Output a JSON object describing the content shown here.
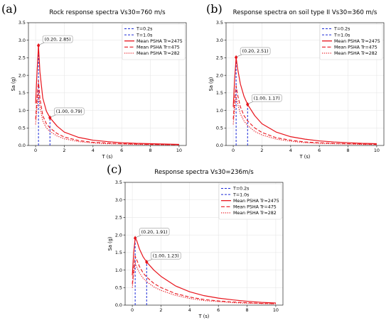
{
  "chart_data": [
    {
      "type": "line",
      "panel_label": "(a)",
      "title": "Rock response spectra Vs30=760 m/s",
      "xlabel": "T (s)",
      "ylabel": "Sa (g)",
      "xlim": [
        -0.5,
        10.5
      ],
      "ylim": [
        0,
        3.5
      ],
      "xticks": [
        "0",
        "2",
        "4",
        "6",
        "8",
        "10"
      ],
      "yticks": [
        "0.0",
        "0.5",
        "1.0",
        "1.5",
        "2.0",
        "2.5",
        "3.0",
        "3.5"
      ],
      "grid": true,
      "legend_position": "top-right",
      "reference_lines": [
        {
          "name": "T=0.2s",
          "x": 0.2
        },
        {
          "name": "T=1.0s",
          "x": 1.0
        }
      ],
      "series": [
        {
          "name": "Mean PSHA Tr=2475",
          "style": "solid",
          "x": [
            0,
            0.1,
            0.2,
            0.3,
            0.5,
            0.75,
            1.0,
            1.5,
            2.0,
            3.0,
            4.0,
            5.0,
            6.0,
            7.0,
            8.0,
            9.0,
            10.0
          ],
          "y": [
            1.2,
            2.1,
            2.85,
            2.1,
            1.35,
            0.98,
            0.79,
            0.55,
            0.38,
            0.23,
            0.15,
            0.11,
            0.08,
            0.06,
            0.05,
            0.04,
            0.03
          ]
        },
        {
          "name": "Mean PSHA Tr=475",
          "style": "dashed",
          "x": [
            0,
            0.1,
            0.2,
            0.3,
            0.5,
            0.75,
            1.0,
            1.5,
            2.0,
            3.0,
            4.0,
            5.0,
            6.0,
            7.0,
            8.0,
            9.0,
            10.0
          ],
          "y": [
            0.75,
            1.35,
            1.85,
            1.35,
            0.85,
            0.62,
            0.5,
            0.34,
            0.24,
            0.14,
            0.09,
            0.07,
            0.05,
            0.04,
            0.03,
            0.025,
            0.02
          ]
        },
        {
          "name": "Mean PSHA Tr=282",
          "style": "dotted",
          "x": [
            0,
            0.1,
            0.2,
            0.3,
            0.5,
            0.75,
            1.0,
            1.5,
            2.0,
            3.0,
            4.0,
            5.0,
            6.0,
            7.0,
            8.0,
            9.0,
            10.0
          ],
          "y": [
            0.6,
            1.1,
            1.55,
            1.1,
            0.7,
            0.5,
            0.4,
            0.27,
            0.19,
            0.11,
            0.07,
            0.05,
            0.04,
            0.03,
            0.025,
            0.02,
            0.015
          ]
        }
      ],
      "annotations": [
        {
          "text": "(0.20, 2.85)",
          "x": 0.2,
          "y": 2.85
        },
        {
          "text": "(1.00, 0.79)",
          "x": 1.0,
          "y": 0.79
        }
      ]
    },
    {
      "type": "line",
      "panel_label": "(b)",
      "title": "Response spectra on soil type II Vs30=360 m/s",
      "xlabel": "T (s)",
      "ylabel": "Sa (g)",
      "xlim": [
        -0.5,
        10.5
      ],
      "ylim": [
        0,
        3.5
      ],
      "xticks": [
        "0",
        "2",
        "4",
        "6",
        "8",
        "10"
      ],
      "yticks": [
        "0.0",
        "0.5",
        "1.0",
        "1.5",
        "2.0",
        "2.5",
        "3.0",
        "3.5"
      ],
      "grid": true,
      "legend_position": "top-right",
      "reference_lines": [
        {
          "name": "T=0.2s",
          "x": 0.2
        },
        {
          "name": "T=1.0s",
          "x": 1.0
        }
      ],
      "series": [
        {
          "name": "Mean PSHA Tr=2475",
          "style": "solid",
          "x": [
            0,
            0.1,
            0.2,
            0.3,
            0.5,
            0.75,
            1.0,
            1.5,
            2.0,
            3.0,
            4.0,
            5.0,
            6.0,
            7.0,
            8.0,
            9.0,
            10.0
          ],
          "y": [
            1.1,
            1.9,
            2.51,
            2.2,
            1.75,
            1.4,
            1.17,
            0.85,
            0.62,
            0.38,
            0.25,
            0.18,
            0.13,
            0.1,
            0.08,
            0.06,
            0.05
          ]
        },
        {
          "name": "Mean PSHA Tr=475",
          "style": "dashed",
          "x": [
            0,
            0.1,
            0.2,
            0.3,
            0.5,
            0.75,
            1.0,
            1.5,
            2.0,
            3.0,
            4.0,
            5.0,
            6.0,
            7.0,
            8.0,
            9.0,
            10.0
          ],
          "y": [
            0.75,
            1.3,
            1.7,
            1.45,
            1.1,
            0.85,
            0.7,
            0.5,
            0.37,
            0.22,
            0.15,
            0.1,
            0.08,
            0.06,
            0.05,
            0.04,
            0.03
          ]
        },
        {
          "name": "Mean PSHA Tr=282",
          "style": "dotted",
          "x": [
            0,
            0.1,
            0.2,
            0.3,
            0.5,
            0.75,
            1.0,
            1.5,
            2.0,
            3.0,
            4.0,
            5.0,
            6.0,
            7.0,
            8.0,
            9.0,
            10.0
          ],
          "y": [
            0.6,
            1.05,
            1.4,
            1.2,
            0.9,
            0.7,
            0.57,
            0.4,
            0.3,
            0.18,
            0.12,
            0.08,
            0.06,
            0.05,
            0.04,
            0.03,
            0.025
          ]
        }
      ],
      "annotations": [
        {
          "text": "(0.20, 2.51)",
          "x": 0.2,
          "y": 2.51
        },
        {
          "text": "(1.00, 1.17)",
          "x": 1.0,
          "y": 1.17
        }
      ]
    },
    {
      "type": "line",
      "panel_label": "(c)",
      "title": "Response spectra Vs30=236m/s",
      "xlabel": "T (s)",
      "ylabel": "Sa (g)",
      "xlim": [
        -0.5,
        10.5
      ],
      "ylim": [
        0,
        3.5
      ],
      "xticks": [
        "0",
        "2",
        "4",
        "6",
        "8",
        "10"
      ],
      "yticks": [
        "0.0",
        "0.5",
        "1.0",
        "1.5",
        "2.0",
        "2.5",
        "3.0",
        "3.5"
      ],
      "grid": true,
      "legend_position": "top-right",
      "reference_lines": [
        {
          "name": "T=0.2s",
          "x": 0.2
        },
        {
          "name": "T=1.0s",
          "x": 1.0
        }
      ],
      "series": [
        {
          "name": "Mean PSHA Tr=2475",
          "style": "solid",
          "x": [
            0,
            0.1,
            0.2,
            0.3,
            0.5,
            0.75,
            1.0,
            1.5,
            2.0,
            3.0,
            4.0,
            5.0,
            6.0,
            7.0,
            8.0,
            9.0,
            10.0
          ],
          "y": [
            0.85,
            1.5,
            1.91,
            1.85,
            1.6,
            1.38,
            1.23,
            1.0,
            0.82,
            0.55,
            0.38,
            0.27,
            0.2,
            0.15,
            0.11,
            0.08,
            0.06
          ]
        },
        {
          "name": "Mean PSHA Tr=475",
          "style": "dashed",
          "x": [
            0,
            0.1,
            0.2,
            0.3,
            0.5,
            0.75,
            1.0,
            1.5,
            2.0,
            3.0,
            4.0,
            5.0,
            6.0,
            7.0,
            8.0,
            9.0,
            10.0
          ],
          "y": [
            0.6,
            1.05,
            1.4,
            1.3,
            1.1,
            0.92,
            0.8,
            0.62,
            0.5,
            0.33,
            0.23,
            0.16,
            0.12,
            0.09,
            0.07,
            0.05,
            0.04
          ]
        },
        {
          "name": "Mean PSHA Tr=282",
          "style": "dotted",
          "x": [
            0,
            0.1,
            0.2,
            0.3,
            0.5,
            0.75,
            1.0,
            1.5,
            2.0,
            3.0,
            4.0,
            5.0,
            6.0,
            7.0,
            8.0,
            9.0,
            10.0
          ],
          "y": [
            0.5,
            0.88,
            1.2,
            1.1,
            0.92,
            0.77,
            0.67,
            0.52,
            0.42,
            0.28,
            0.19,
            0.13,
            0.1,
            0.07,
            0.055,
            0.045,
            0.035
          ]
        }
      ],
      "annotations": [
        {
          "text": "(0.20, 1.91)",
          "x": 0.2,
          "y": 1.91
        },
        {
          "text": "(1.00, 1.23)",
          "x": 1.0,
          "y": 1.23
        }
      ]
    }
  ],
  "colors": {
    "main_series": "#e8141c",
    "reference_line": "#1c2bd6",
    "grid": "#e2e2e2",
    "annotation_border": "#999999"
  }
}
